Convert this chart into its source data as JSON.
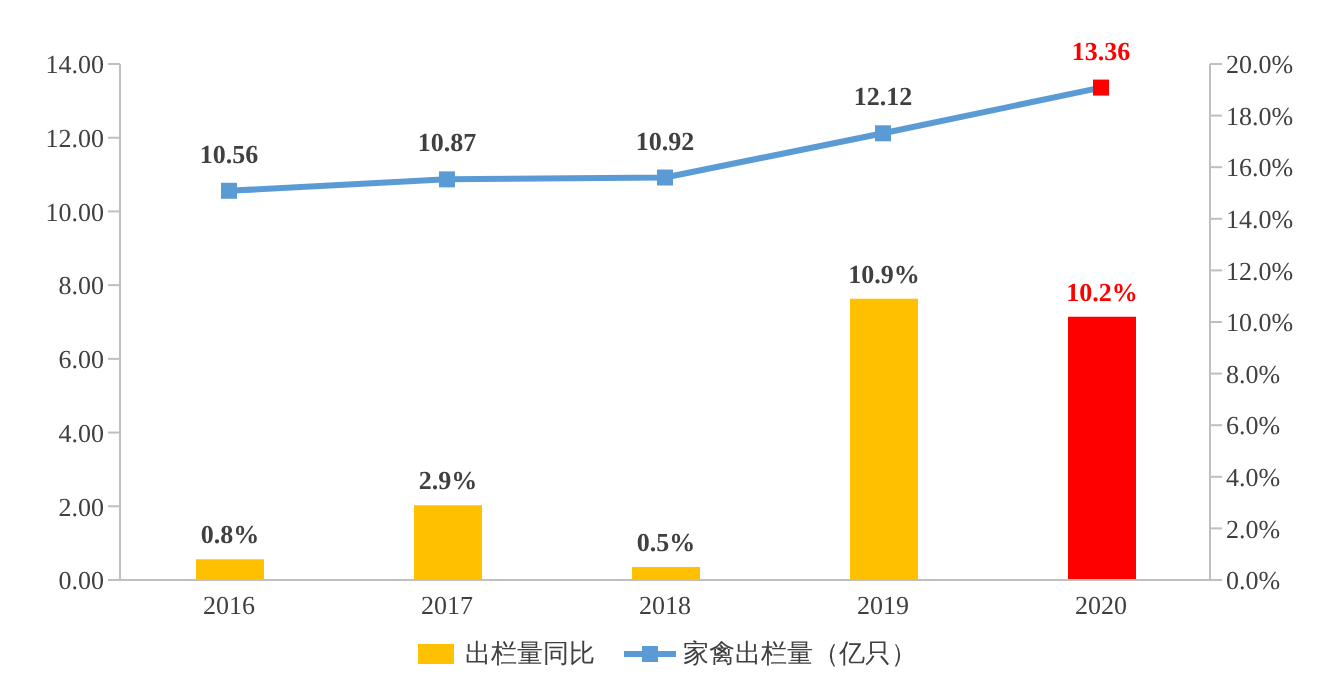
{
  "chart_data": {
    "type": "bar",
    "categories": [
      "2016",
      "2017",
      "2018",
      "2019",
      "2020"
    ],
    "series": [
      {
        "name": "出栏量同比",
        "axis": "y2",
        "color": "#ffc000",
        "colors": [
          "#ffc000",
          "#ffc000",
          "#ffc000",
          "#ffc000",
          "#ff0000"
        ],
        "values": [
          0.8,
          2.9,
          0.5,
          10.9,
          10.2
        ],
        "value_labels": [
          "0.8%",
          "2.9%",
          "0.5%",
          "10.9%",
          "10.2%"
        ]
      },
      {
        "name": "家禽出栏量（亿只）",
        "type": "line",
        "color": "#5b9bd5",
        "colors": [
          "#5b9bd5",
          "#5b9bd5",
          "#5b9bd5",
          "#5b9bd5",
          "#ff0000"
        ],
        "values": [
          10.56,
          10.87,
          10.92,
          12.12,
          13.36
        ],
        "value_labels": [
          "10.56",
          "10.87",
          "10.92",
          "12.12",
          "13.36"
        ]
      }
    ],
    "ylim": [
      0,
      14
    ],
    "yticks": [
      {
        "value": 0,
        "label": "0.00"
      },
      {
        "value": 2,
        "label": "2.00"
      },
      {
        "value": 4,
        "label": "4.00"
      },
      {
        "value": 6,
        "label": "6.00"
      },
      {
        "value": 8,
        "label": "8.00"
      },
      {
        "value": 10,
        "label": "10.00"
      },
      {
        "value": 12,
        "label": "12.00"
      },
      {
        "value": 14,
        "label": "14.00"
      }
    ],
    "y2lim": [
      0,
      20
    ],
    "y2ticks": [
      {
        "value": 0,
        "label": "0.0%"
      },
      {
        "value": 2,
        "label": "2.0%"
      },
      {
        "value": 4,
        "label": "4.0%"
      },
      {
        "value": 6,
        "label": "6.0%"
      },
      {
        "value": 8,
        "label": "8.0%"
      },
      {
        "value": 10,
        "label": "10.0%"
      },
      {
        "value": 12,
        "label": "12.0%"
      },
      {
        "value": 14,
        "label": "14.0%"
      },
      {
        "value": 16,
        "label": "16.0%"
      },
      {
        "value": 18,
        "label": "18.0%"
      },
      {
        "value": 20,
        "label": "20.0%"
      }
    ],
    "grid": false,
    "legend": "bottom",
    "marker": "square"
  }
}
